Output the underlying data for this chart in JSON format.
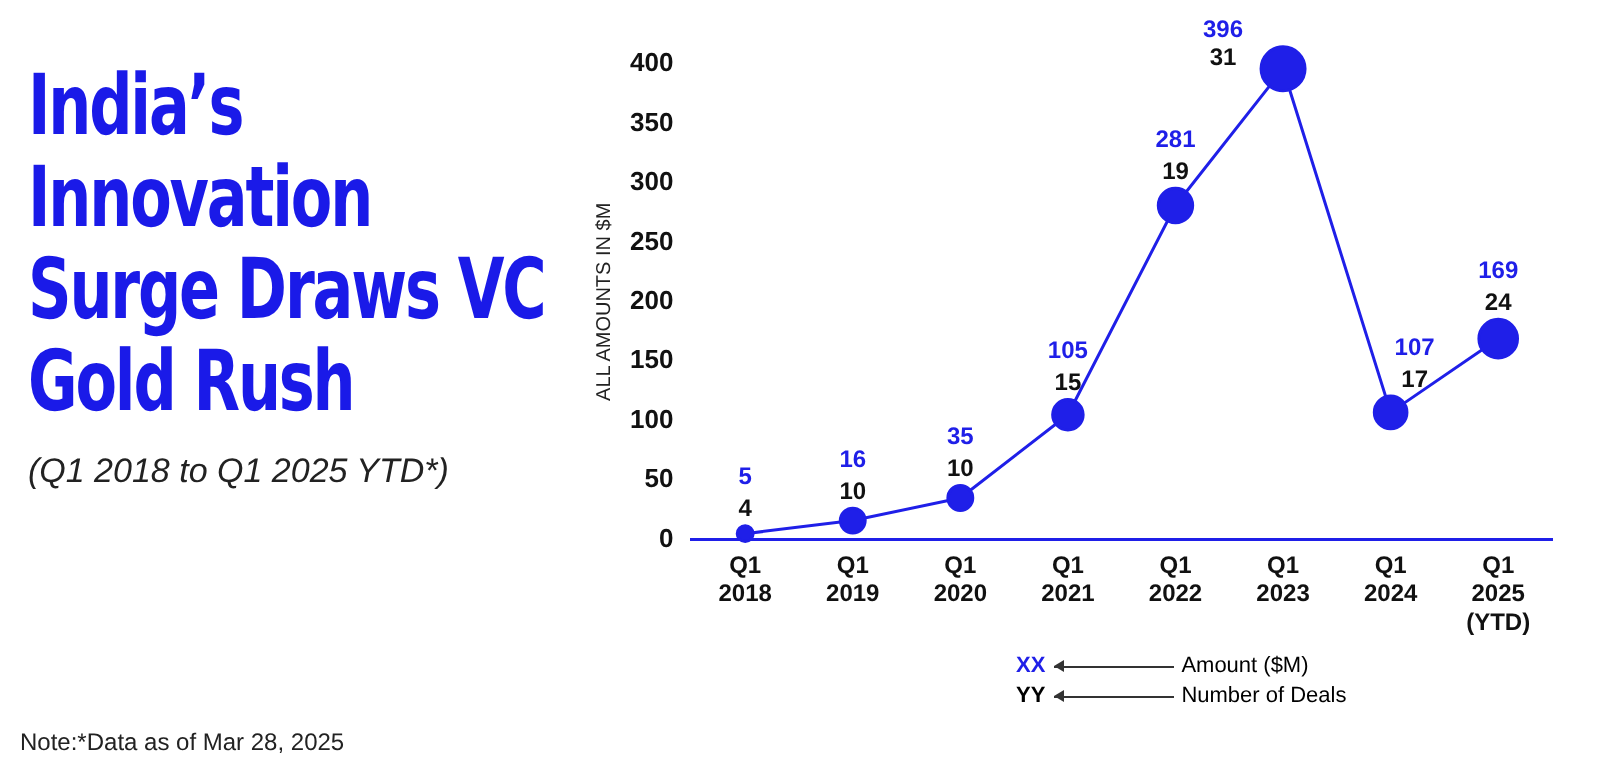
{
  "chart_data": {
    "type": "bubble",
    "title": "India’s Innovation Surge Draws VC Gold Rush",
    "subtitle": "(Q1 2018 to Q1 2025 YTD*)",
    "ylabel": "ALL AMOUNTS IN $M",
    "categories": [
      "Q1 2018",
      "Q1 2019",
      "Q1 2020",
      "Q1 2021",
      "Q1 2022",
      "Q1 2023",
      "Q1 2024",
      "Q1 2025 (YTD)"
    ],
    "values": [
      5,
      16,
      35,
      105,
      281,
      396,
      107,
      169
    ],
    "sizes": [
      0.13,
      0.32,
      0.32,
      0.48,
      0.61,
      1,
      0.55,
      0.77
    ],
    "color": "#1f1fe8",
    "data_labels": true,
    "ylim": [
      0,
      400
    ],
    "yticks": [
      0,
      50,
      100,
      150,
      200,
      250,
      300,
      350,
      400
    ],
    "grid": false,
    "legend": false,
    "annotations": [
      {
        "text": "4",
        "x": "Q1 2018",
        "y": 5
      },
      {
        "text": "10",
        "x": "Q1 2019",
        "y": 16
      },
      {
        "text": "10",
        "x": "Q1 2020",
        "y": 35
      },
      {
        "text": "15",
        "x": "Q1 2021",
        "y": 105
      },
      {
        "text": "19",
        "x": "Q1 2022",
        "y": 281
      },
      {
        "text": "31",
        "x": "Q1 2023",
        "y": 396
      },
      {
        "text": "17",
        "x": "Q1 2024",
        "y": 107
      },
      {
        "text": "24",
        "x": "Q1 2025 (YTD)",
        "y": 169
      },
      "XX",
      "Amount ($M)",
      "YY",
      "Number of Deals",
      "Note:*Data as of  Mar 28, 2025"
    ]
  }
}
